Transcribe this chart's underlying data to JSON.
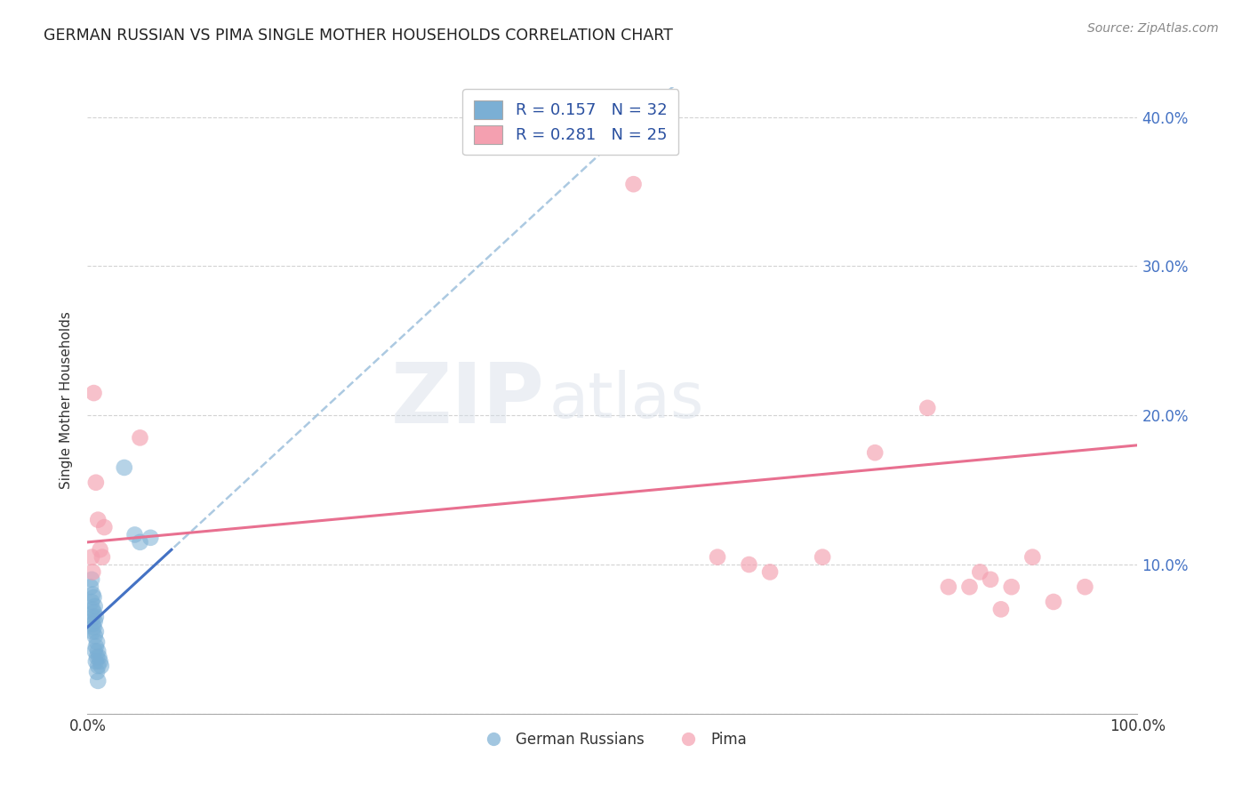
{
  "title": "GERMAN RUSSIAN VS PIMA SINGLE MOTHER HOUSEHOLDS CORRELATION CHART",
  "source": "Source: ZipAtlas.com",
  "ylabel": "Single Mother Households",
  "xlabel": "",
  "xlim": [
    0,
    1.0
  ],
  "ylim": [
    0,
    0.42
  ],
  "yticks": [
    0.0,
    0.1,
    0.2,
    0.3,
    0.4
  ],
  "ytick_labels": [
    "",
    "10.0%",
    "20.0%",
    "30.0%",
    "40.0%"
  ],
  "xticks": [
    0.0,
    0.25,
    0.5,
    0.75,
    1.0
  ],
  "xtick_labels": [
    "0.0%",
    "",
    "",
    "",
    "100.0%"
  ],
  "german_russian_color": "#7BAFD4",
  "pima_color": "#F4A0B0",
  "german_russian_line_color": "#4472C4",
  "pima_line_color": "#E87090",
  "blue_dashed_color": "#90B8D8",
  "legend_r1": "R = 0.157",
  "legend_n1": "N = 32",
  "legend_r2": "R = 0.281",
  "legend_n2": "N = 25",
  "legend_label1": "German Russians",
  "legend_label2": "Pima",
  "watermark_zip": "ZIP",
  "watermark_atlas": "atlas",
  "german_russian_points": [
    [
      0.003,
      0.085
    ],
    [
      0.004,
      0.09
    ],
    [
      0.004,
      0.075
    ],
    [
      0.005,
      0.08
    ],
    [
      0.005,
      0.07
    ],
    [
      0.005,
      0.065
    ],
    [
      0.005,
      0.06
    ],
    [
      0.005,
      0.055
    ],
    [
      0.006,
      0.078
    ],
    [
      0.006,
      0.068
    ],
    [
      0.006,
      0.058
    ],
    [
      0.007,
      0.072
    ],
    [
      0.007,
      0.062
    ],
    [
      0.007,
      0.052
    ],
    [
      0.007,
      0.042
    ],
    [
      0.008,
      0.065
    ],
    [
      0.008,
      0.055
    ],
    [
      0.008,
      0.045
    ],
    [
      0.008,
      0.035
    ],
    [
      0.009,
      0.048
    ],
    [
      0.009,
      0.038
    ],
    [
      0.009,
      0.028
    ],
    [
      0.01,
      0.042
    ],
    [
      0.01,
      0.032
    ],
    [
      0.01,
      0.022
    ],
    [
      0.011,
      0.038
    ],
    [
      0.012,
      0.035
    ],
    [
      0.013,
      0.032
    ],
    [
      0.035,
      0.165
    ],
    [
      0.045,
      0.12
    ],
    [
      0.05,
      0.115
    ],
    [
      0.06,
      0.118
    ]
  ],
  "pima_points": [
    [
      0.004,
      0.105
    ],
    [
      0.006,
      0.215
    ],
    [
      0.008,
      0.155
    ],
    [
      0.01,
      0.13
    ],
    [
      0.012,
      0.11
    ],
    [
      0.014,
      0.105
    ],
    [
      0.016,
      0.125
    ],
    [
      0.05,
      0.185
    ],
    [
      0.52,
      0.355
    ],
    [
      0.6,
      0.105
    ],
    [
      0.63,
      0.1
    ],
    [
      0.65,
      0.095
    ],
    [
      0.7,
      0.105
    ],
    [
      0.75,
      0.175
    ],
    [
      0.8,
      0.205
    ],
    [
      0.82,
      0.085
    ],
    [
      0.84,
      0.085
    ],
    [
      0.85,
      0.095
    ],
    [
      0.86,
      0.09
    ],
    [
      0.87,
      0.07
    ],
    [
      0.88,
      0.085
    ],
    [
      0.9,
      0.105
    ],
    [
      0.92,
      0.075
    ],
    [
      0.95,
      0.085
    ],
    [
      0.005,
      0.095
    ]
  ],
  "gr_regression": {
    "m": 0.65,
    "b": 0.058
  },
  "gr_line_xrange": [
    0.0,
    0.08
  ],
  "pima_regression": {
    "m": 0.065,
    "b": 0.115
  },
  "pima_line_xrange": [
    0.0,
    1.0
  ],
  "blue_dashed_xrange": [
    0.0,
    1.0
  ]
}
